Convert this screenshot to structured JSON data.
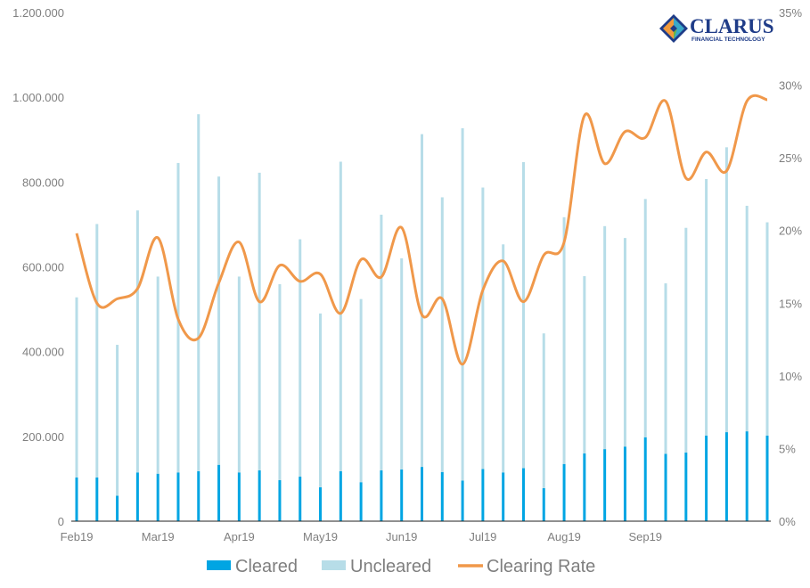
{
  "logo": {
    "name": "CLARUS",
    "tagline": "FINANCIAL TECHNOLOGY",
    "colors": {
      "blue": "#1f3c88",
      "teal": "#3aa9c9",
      "orange": "#f29a3b",
      "green": "#6fb53f"
    }
  },
  "colors": {
    "cleared": "#00a5e3",
    "uncleared": "#b7dde8",
    "rate": "#f0984a",
    "axis": "#7f7f7f",
    "baseline": "#222222"
  },
  "chart_data": {
    "type": "bar",
    "stacked": true,
    "grid": false,
    "legend_position": "bottom",
    "x_tick_labels": [
      "Feb19",
      "Mar19",
      "Apr19",
      "May19",
      "Jun19",
      "Jul19",
      "Aug19",
      "Sep19"
    ],
    "x_tick_positions": [
      0,
      4,
      8,
      12,
      16,
      20,
      24,
      28
    ],
    "y_left": {
      "ticks": [
        "0",
        "200.000",
        "400.000",
        "600.000",
        "800.000",
        "1.000.000",
        "1.200.000"
      ],
      "range": [
        0,
        1200000
      ]
    },
    "y_right": {
      "ticks": [
        "0%",
        "5%",
        "10%",
        "15%",
        "20%",
        "25%",
        "30%",
        "35%"
      ],
      "range": [
        0,
        35
      ]
    },
    "series": [
      {
        "name": "Cleared",
        "axis": "left",
        "values": [
          103000,
          103000,
          60000,
          115000,
          112000,
          115000,
          118000,
          133000,
          115000,
          120000,
          97000,
          105000,
          80000,
          118000,
          92000,
          120000,
          122000,
          128000,
          116000,
          96000,
          123000,
          115000,
          125000,
          78000,
          135000,
          160000,
          170000,
          176000,
          198000,
          159000,
          162000,
          202000,
          210000,
          212000,
          202000
        ]
      },
      {
        "name": "Uncleared",
        "axis": "left",
        "values": [
          425000,
          598000,
          356000,
          618000,
          465000,
          730000,
          842000,
          680000,
          462000,
          702000,
          462000,
          560000,
          410000,
          730000,
          432000,
          603000,
          498000,
          785000,
          648000,
          831000,
          664000,
          538000,
          722000,
          365000,
          582000,
          418000,
          526000,
          492000,
          562000,
          402000,
          530000,
          605000,
          672000,
          532000,
          503000
        ]
      },
      {
        "name": "Clearing Rate",
        "axis": "right",
        "type": "line",
        "values": [
          19.8,
          15.0,
          15.3,
          16.0,
          19.5,
          13.9,
          12.6,
          16.4,
          19.2,
          15.1,
          17.6,
          16.5,
          17.0,
          14.3,
          18.0,
          16.8,
          20.2,
          14.2,
          15.3,
          10.8,
          15.9,
          17.9,
          15.1,
          18.3,
          19.2,
          27.9,
          24.6,
          26.8,
          26.4,
          28.9,
          23.6,
          25.4,
          24.1,
          28.9,
          29.0
        ]
      }
    ]
  }
}
